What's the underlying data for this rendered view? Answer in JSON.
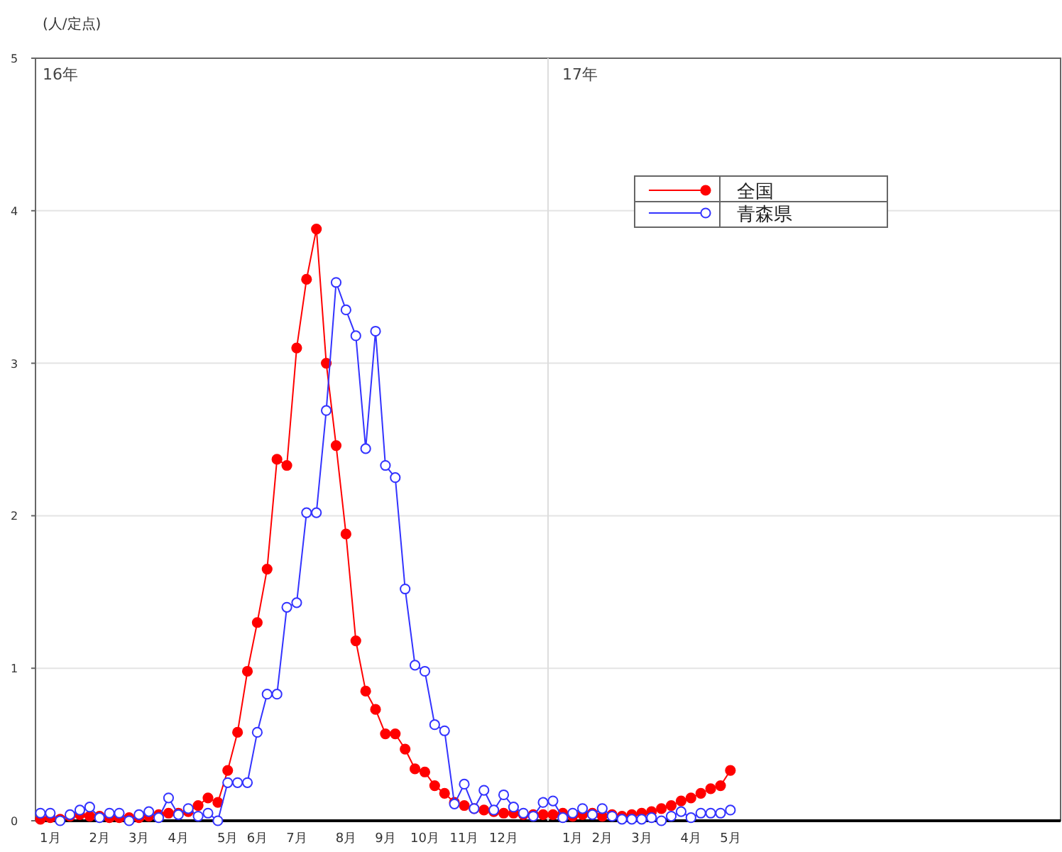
{
  "chart_data": {
    "type": "line",
    "ylabel": "(人/定点)",
    "categories": [
      null,
      "1月",
      null,
      null,
      null,
      null,
      "2月",
      null,
      null,
      null,
      "3月",
      null,
      null,
      null,
      "4月",
      null,
      null,
      null,
      null,
      "5月",
      null,
      null,
      "6月",
      null,
      null,
      null,
      "7月",
      null,
      null,
      null,
      null,
      "8月",
      null,
      null,
      null,
      "9月",
      null,
      null,
      null,
      "10月",
      null,
      null,
      null,
      "11月",
      null,
      null,
      null,
      "12月",
      null,
      null,
      null,
      null,
      null,
      null,
      "1月",
      null,
      null,
      "2月",
      null,
      null,
      null,
      "3月",
      null,
      null,
      null,
      null,
      "4月",
      null,
      null,
      null,
      "5月",
      null,
      null,
      null,
      null,
      null,
      null,
      null,
      null,
      null,
      null,
      null,
      null,
      null,
      null,
      null,
      null,
      null,
      null,
      null,
      null,
      null,
      null,
      null,
      null,
      null,
      null,
      null,
      null,
      null,
      null,
      null,
      null,
      null
    ],
    "series": [
      {
        "name": "全国",
        "color": "#ff0000",
        "marker": "circle",
        "values": [
          0.01,
          0.02,
          0.01,
          0.03,
          0.04,
          0.03,
          0.03,
          0.02,
          0.02,
          0.02,
          0.02,
          0.03,
          0.04,
          0.05,
          0.05,
          0.06,
          0.1,
          0.15,
          0.12,
          0.33,
          0.58,
          0.98,
          1.3,
          1.65,
          2.37,
          2.33,
          3.1,
          3.55,
          3.88,
          3.0,
          2.46,
          1.88,
          1.18,
          0.85,
          0.73,
          0.57,
          0.57,
          0.47,
          0.34,
          0.32,
          0.23,
          0.18,
          0.12,
          0.1,
          0.08,
          0.07,
          0.06,
          0.05,
          0.05,
          0.04,
          0.04,
          0.04,
          0.04,
          0.05,
          0.03,
          0.04,
          0.05,
          0.03,
          0.04,
          0.03,
          0.04,
          0.05,
          0.06,
          0.08,
          0.1,
          0.13,
          0.15,
          0.18,
          0.21,
          0.23,
          0.33,
          null,
          null,
          null,
          null,
          null,
          null,
          null,
          null,
          null,
          null,
          null,
          null,
          null,
          null,
          null,
          null,
          null,
          null,
          null,
          null,
          null,
          null,
          null,
          null,
          null,
          null,
          null,
          null,
          null,
          null,
          null,
          null,
          null
        ]
      },
      {
        "name": "青森県",
        "color": "#3333ff",
        "marker": "circle",
        "values": [
          0.05,
          0.05,
          0.0,
          0.04,
          0.07,
          0.09,
          0.02,
          0.05,
          0.05,
          0.0,
          0.04,
          0.06,
          0.02,
          0.15,
          0.04,
          0.08,
          0.03,
          0.05,
          0.0,
          0.25,
          0.25,
          0.25,
          0.58,
          0.83,
          0.83,
          1.4,
          1.43,
          2.02,
          2.02,
          2.69,
          3.53,
          3.35,
          3.18,
          2.44,
          3.21,
          2.33,
          2.25,
          1.52,
          1.02,
          0.98,
          0.63,
          0.59,
          0.11,
          0.24,
          0.08,
          0.2,
          0.07,
          0.17,
          0.09,
          0.05,
          0.03,
          0.12,
          0.13,
          0.02,
          0.05,
          0.08,
          0.04,
          0.08,
          0.03,
          0.01,
          0.01,
          0.01,
          0.02,
          0.0,
          0.03,
          0.06,
          0.02,
          0.05,
          0.05,
          0.05,
          0.07,
          null,
          null,
          null,
          null,
          null,
          null,
          null,
          null,
          null,
          null,
          null,
          null,
          null,
          null,
          null,
          null,
          null,
          null,
          null,
          null,
          null,
          null,
          null,
          null,
          null,
          null,
          null,
          null,
          null,
          null,
          null,
          null,
          null
        ]
      }
    ],
    "ylim": [
      0,
      5
    ],
    "yticks": [
      0,
      1,
      2,
      3,
      4,
      5
    ],
    "annotations": [
      "16年",
      "17年"
    ],
    "grid": "y",
    "legend": "top right"
  }
}
